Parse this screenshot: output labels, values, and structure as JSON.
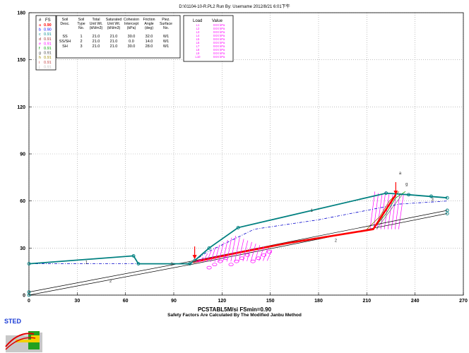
{
  "header": "D:\\01104-10-R.PL2   Run By: Username   2012/8/21   6:01下午",
  "footer": {
    "program": "PCSTABL5M/si  FSmin=0.90",
    "method": "Safety Factors Are Calculated By The Modified Janbu Method"
  },
  "logo_text": "STED",
  "fs_legend": {
    "header": [
      "#",
      "FS"
    ],
    "rows": [
      {
        "id": "a",
        "fs": "0.90",
        "color": "#ff0000"
      },
      {
        "id": "b",
        "fs": "0.90",
        "color": "#0000ff"
      },
      {
        "id": "c",
        "fs": "0.91",
        "color": "#008c8c"
      },
      {
        "id": "d",
        "fs": "0.91",
        "color": "#9c2a2a"
      },
      {
        "id": "e",
        "fs": "0.91",
        "color": "#ff00ff"
      },
      {
        "id": "f",
        "fs": "0.91",
        "color": "#00a000"
      },
      {
        "id": "g",
        "fs": "0.91",
        "color": "#404040"
      },
      {
        "id": "h",
        "fs": "0.91",
        "color": "#a08a00"
      },
      {
        "id": "i",
        "fs": "0.91",
        "color": "#c04040"
      },
      {
        "id": "j",
        "fs": "0.91",
        "color": "#c0c0c0"
      }
    ]
  },
  "soil_table": {
    "headers": [
      [
        "Soil",
        "Desc."
      ],
      [
        "Soil",
        "Type",
        "No."
      ],
      [
        "Total",
        "Unit Wt.",
        "(kN/m3)"
      ],
      [
        "Saturated",
        "Unit Wt.",
        "(kN/m3)"
      ],
      [
        "Cohesion",
        "Intercept",
        "(kPa)"
      ],
      [
        "Friction",
        "Angle",
        "(deg)"
      ],
      [
        "Piez.",
        "Surface",
        "No."
      ]
    ],
    "rows": [
      [
        "SS",
        "1",
        "21.0",
        "21.0",
        "30.0",
        "32.0",
        "W1"
      ],
      [
        "SS/SH",
        "2",
        "21.0",
        "21.0",
        "0.0",
        "14.0",
        "W1"
      ],
      [
        "SH",
        "3",
        "21.0",
        "21.0",
        "30.0",
        "28.0",
        "W1"
      ]
    ]
  },
  "load_table": {
    "headers": [
      "Load",
      "Value"
    ],
    "rows": [
      [
        "L1",
        "XXX kPa"
      ],
      [
        "L2",
        "XXX kPa"
      ],
      [
        "L3",
        "XXX kPa"
      ],
      [
        "L4",
        "XXX kPa"
      ],
      [
        "L5",
        "XXX kPa"
      ],
      [
        "L6",
        "XXX kPa"
      ],
      [
        "L7",
        "XXX kPa"
      ],
      [
        "L8",
        "XXX kPa"
      ],
      [
        "L9",
        "XXX kPa"
      ],
      [
        "L10",
        "XXX kPa"
      ]
    ]
  },
  "chart_data": {
    "type": "line",
    "xlim": [
      0,
      270
    ],
    "ylim": [
      0,
      180
    ],
    "xticks": [
      0,
      30,
      60,
      90,
      120,
      150,
      180,
      210,
      240,
      270
    ],
    "yticks": [
      0,
      30,
      60,
      90,
      120,
      150,
      180
    ],
    "grid": true,
    "colors": {
      "ground": "#008080",
      "boundary": "#000000",
      "water": "#0000cc",
      "critical": "#ff0000",
      "load": "#ff00ff",
      "arrow": "#ff0000"
    },
    "ground_surface": [
      [
        0,
        20
      ],
      [
        65,
        25
      ],
      [
        68,
        20
      ],
      [
        100,
        20
      ],
      [
        103,
        22
      ],
      [
        112,
        30
      ],
      [
        130,
        43
      ],
      [
        222,
        65
      ],
      [
        236,
        64
      ],
      [
        260,
        62
      ]
    ],
    "boundary_1": [
      [
        0,
        2
      ],
      [
        103,
        22
      ],
      [
        260,
        54
      ]
    ],
    "boundary_2": [
      [
        0,
        0
      ],
      [
        103,
        20
      ],
      [
        260,
        52
      ]
    ],
    "piezometric_surface": [
      [
        0,
        20
      ],
      [
        100,
        20
      ],
      [
        110,
        27
      ],
      [
        140,
        42
      ],
      [
        180,
        48
      ],
      [
        230,
        58
      ],
      [
        260,
        60
      ]
    ],
    "critical_surface": [
      [
        102,
        21
      ],
      [
        130,
        27
      ],
      [
        160,
        33
      ],
      [
        214,
        42
      ],
      [
        228,
        64
      ]
    ],
    "load_strip": {
      "x_start": 103,
      "x_end": 152,
      "top": [
        [
          103,
          22
        ],
        [
          112,
          30
        ],
        [
          125,
          38
        ],
        [
          150,
          28
        ]
      ],
      "bottom": [
        [
          103,
          21
        ],
        [
          150,
          27
        ]
      ]
    },
    "load_arrows": [
      [
        103,
        31
      ],
      [
        228,
        72
      ]
    ],
    "slice_fan": {
      "x_start": 212,
      "x_end": 232,
      "top": 66,
      "bottom": 42
    },
    "surface_labels": [
      {
        "text": "1",
        "x": 35,
        "y": 20
      },
      {
        "text": "2",
        "x": 50,
        "y": 8
      },
      {
        "text": "3",
        "x": 88,
        "y": 19
      },
      {
        "text": "1",
        "x": 175,
        "y": 53
      },
      {
        "text": "2",
        "x": 190,
        "y": 34
      },
      {
        "text": "3",
        "x": 250,
        "y": 60
      },
      {
        "text": "a",
        "x": 230,
        "y": 77
      },
      {
        "text": "g",
        "x": 234,
        "y": 70
      }
    ]
  }
}
